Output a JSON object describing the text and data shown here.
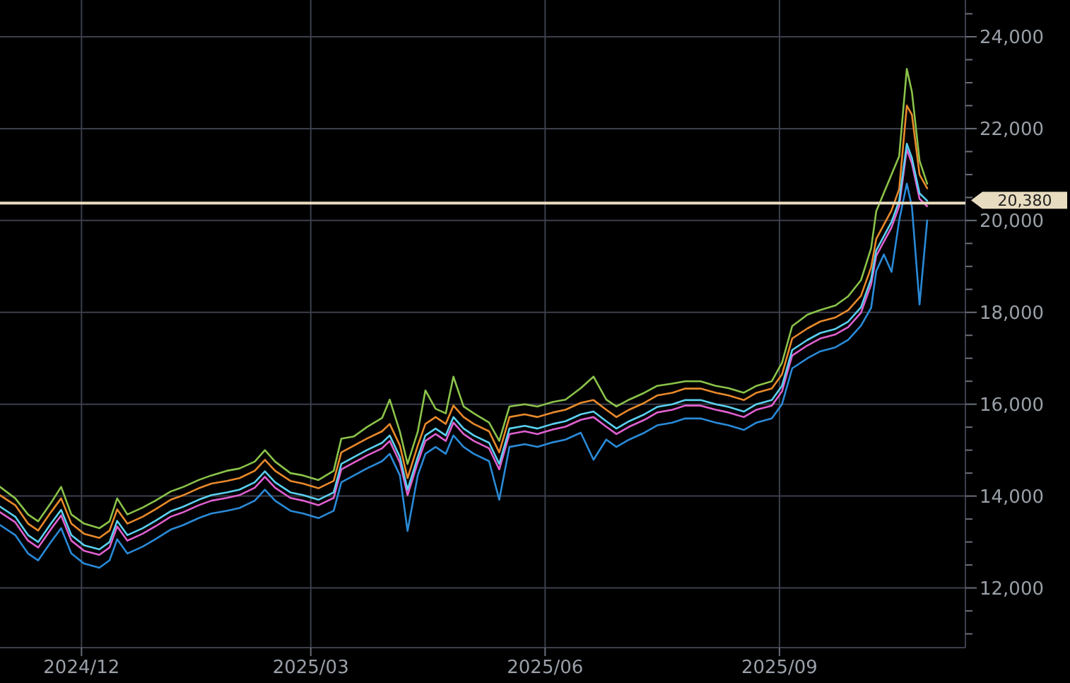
{
  "chart_data": {
    "type": "line",
    "grid": true,
    "marker": "none",
    "line_style": "solid",
    "x": [
      "2024-10-30",
      "2024-11-05",
      "2024-11-10",
      "2024-11-14",
      "2024-11-19",
      "2024-11-23",
      "2024-11-27",
      "2024-12-02",
      "2024-12-08",
      "2024-12-12",
      "2024-12-15",
      "2024-12-19",
      "2024-12-25",
      "2024-12-30",
      "2025-01-05",
      "2025-01-10",
      "2025-01-16",
      "2025-01-21",
      "2025-01-27",
      "2025-02-01",
      "2025-02-07",
      "2025-02-11",
      "2025-02-15",
      "2025-02-21",
      "2025-02-26",
      "2025-03-04",
      "2025-03-10",
      "2025-03-13",
      "2025-03-18",
      "2025-03-23",
      "2025-03-29",
      "2025-04-01",
      "2025-04-05",
      "2025-04-08",
      "2025-04-12",
      "2025-04-15",
      "2025-04-19",
      "2025-04-23",
      "2025-04-26",
      "2025-04-30",
      "2025-05-04",
      "2025-05-10",
      "2025-05-14",
      "2025-05-18",
      "2025-05-24",
      "2025-05-29",
      "2025-06-04",
      "2025-06-09",
      "2025-06-15",
      "2025-06-20",
      "2025-06-25",
      "2025-06-29",
      "2025-07-04",
      "2025-07-10",
      "2025-07-15",
      "2025-07-21",
      "2025-07-26",
      "2025-08-01",
      "2025-08-07",
      "2025-08-12",
      "2025-08-18",
      "2025-08-23",
      "2025-08-29",
      "2025-09-02",
      "2025-09-06",
      "2025-09-12",
      "2025-09-17",
      "2025-09-23",
      "2025-09-28",
      "2025-10-03",
      "2025-10-07",
      "2025-10-09",
      "2025-10-12",
      "2025-10-15",
      "2025-10-18",
      "2025-10-21",
      "2025-10-23",
      "2025-10-26",
      "2025-10-29"
    ],
    "xlim": [
      "2024-10-30",
      "2025-11-13"
    ],
    "xticks": [
      {
        "value": "2024-12-01",
        "label": "2024/12"
      },
      {
        "value": "2025-03-01",
        "label": "2025/03"
      },
      {
        "value": "2025-06-01",
        "label": "2025/06"
      },
      {
        "value": "2025-09-01",
        "label": "2025/09"
      }
    ],
    "ylim": [
      10700,
      24800
    ],
    "yticks": [
      {
        "value": 11000,
        "label": null
      },
      {
        "value": 11500,
        "label": null
      },
      {
        "value": 12000,
        "label": "12,000"
      },
      {
        "value": 12500,
        "label": null
      },
      {
        "value": 13000,
        "label": null
      },
      {
        "value": 13500,
        "label": null
      },
      {
        "value": 14000,
        "label": "14,000"
      },
      {
        "value": 14500,
        "label": null
      },
      {
        "value": 15000,
        "label": null
      },
      {
        "value": 15500,
        "label": null
      },
      {
        "value": 16000,
        "label": "16,000"
      },
      {
        "value": 16500,
        "label": null
      },
      {
        "value": 17000,
        "label": null
      },
      {
        "value": 17500,
        "label": null
      },
      {
        "value": 18000,
        "label": "18,000"
      },
      {
        "value": 18500,
        "label": null
      },
      {
        "value": 19000,
        "label": null
      },
      {
        "value": 19500,
        "label": null
      },
      {
        "value": 20000,
        "label": "20,000"
      },
      {
        "value": 20500,
        "label": null
      },
      {
        "value": 21000,
        "label": null
      },
      {
        "value": 21500,
        "label": null
      },
      {
        "value": 22000,
        "label": "22,000"
      },
      {
        "value": 22500,
        "label": null
      },
      {
        "value": 23000,
        "label": null
      },
      {
        "value": 23500,
        "label": null
      },
      {
        "value": 24000,
        "label": "24,000"
      },
      {
        "value": 24500,
        "label": null
      }
    ],
    "ref_lines": [
      {
        "axis": "y",
        "value": 20380,
        "label": "20,380",
        "color": "#e8dcc0"
      }
    ],
    "series": [
      {
        "color": "#2a8ad8",
        "values": [
          13370,
          13150,
          12750,
          12600,
          13000,
          13300,
          12750,
          12530,
          12440,
          12600,
          13060,
          12750,
          12900,
          13060,
          13270,
          13370,
          13520,
          13620,
          13680,
          13740,
          13900,
          14140,
          13900,
          13680,
          13620,
          13520,
          13680,
          14300,
          14450,
          14600,
          14760,
          14920,
          14450,
          13240,
          14450,
          14920,
          15070,
          14920,
          15320,
          15070,
          14920,
          14760,
          13920,
          15070,
          15130,
          15070,
          15170,
          15230,
          15380,
          14790,
          15230,
          15070,
          15230,
          15380,
          15540,
          15600,
          15690,
          15690,
          15600,
          15540,
          15440,
          15600,
          15690,
          16000,
          16780,
          17000,
          17150,
          17240,
          17400,
          17710,
          18100,
          18900,
          19260,
          18880,
          20000,
          20800,
          20300,
          18170,
          20000
        ]
      },
      {
        "color": "#8bc34a",
        "values": [
          14200,
          13950,
          13600,
          13450,
          13850,
          14200,
          13600,
          13400,
          13300,
          13450,
          13950,
          13600,
          13750,
          13900,
          14100,
          14200,
          14350,
          14450,
          14550,
          14600,
          14750,
          15000,
          14750,
          14500,
          14450,
          14350,
          14550,
          15250,
          15300,
          15500,
          15700,
          16100,
          15400,
          14700,
          15400,
          16300,
          15900,
          15800,
          16600,
          15950,
          15800,
          15600,
          15200,
          15950,
          16000,
          15950,
          16050,
          16100,
          16350,
          16600,
          16100,
          15950,
          16100,
          16250,
          16400,
          16450,
          16500,
          16500,
          16400,
          16350,
          16250,
          16400,
          16500,
          16900,
          17700,
          17950,
          18050,
          18150,
          18350,
          18700,
          19400,
          20200,
          20600,
          21000,
          21400,
          23300,
          22800,
          21300,
          20800
        ]
      },
      {
        "color": "#e8892b",
        "values": [
          14020,
          13800,
          13400,
          13250,
          13650,
          13950,
          13400,
          13180,
          13090,
          13250,
          13710,
          13400,
          13550,
          13710,
          13920,
          14020,
          14170,
          14270,
          14330,
          14390,
          14550,
          14790,
          14550,
          14330,
          14270,
          14170,
          14330,
          14950,
          15100,
          15250,
          15410,
          15570,
          15100,
          14390,
          15100,
          15570,
          15720,
          15570,
          15970,
          15720,
          15570,
          15410,
          14950,
          15720,
          15780,
          15720,
          15820,
          15880,
          16030,
          16090,
          15880,
          15720,
          15880,
          16030,
          16190,
          16250,
          16340,
          16340,
          16250,
          16190,
          16090,
          16250,
          16340,
          16650,
          17430,
          17650,
          17800,
          17890,
          18050,
          18360,
          18980,
          19600,
          19910,
          20220,
          20680,
          22500,
          22300,
          21000,
          20700
        ]
      },
      {
        "color": "#e060d0",
        "values": [
          13650,
          13430,
          13030,
          12880,
          13280,
          13580,
          13030,
          12810,
          12720,
          12880,
          13340,
          13030,
          13180,
          13340,
          13550,
          13650,
          13800,
          13900,
          13960,
          14020,
          14180,
          14420,
          14180,
          13960,
          13900,
          13800,
          13960,
          14580,
          14730,
          14880,
          15040,
          15200,
          14730,
          14020,
          14730,
          15200,
          15350,
          15200,
          15600,
          15350,
          15200,
          15040,
          14580,
          15350,
          15410,
          15350,
          15450,
          15510,
          15660,
          15720,
          15510,
          15350,
          15510,
          15660,
          15820,
          15880,
          15970,
          15970,
          15880,
          15820,
          15720,
          15880,
          15970,
          16280,
          17060,
          17280,
          17430,
          17520,
          17680,
          17990,
          18610,
          19230,
          19540,
          19850,
          20310,
          21550,
          21240,
          20470,
          20310
        ]
      },
      {
        "color": "#5ad0f0",
        "values": [
          13770,
          13550,
          13150,
          13000,
          13400,
          13700,
          13150,
          12930,
          12840,
          13000,
          13460,
          13150,
          13300,
          13460,
          13670,
          13770,
          13920,
          14020,
          14080,
          14140,
          14300,
          14540,
          14300,
          14080,
          14020,
          13920,
          14080,
          14700,
          14850,
          15000,
          15160,
          15320,
          14850,
          14140,
          14850,
          15320,
          15470,
          15320,
          15720,
          15470,
          15320,
          15160,
          14700,
          15470,
          15530,
          15470,
          15570,
          15630,
          15780,
          15840,
          15630,
          15470,
          15630,
          15780,
          15940,
          16000,
          16090,
          16090,
          16000,
          15940,
          15840,
          16000,
          16090,
          16400,
          17180,
          17400,
          17550,
          17640,
          17800,
          18110,
          18730,
          19350,
          19660,
          19970,
          20430,
          21670,
          21360,
          20590,
          20430
        ]
      }
    ]
  }
}
